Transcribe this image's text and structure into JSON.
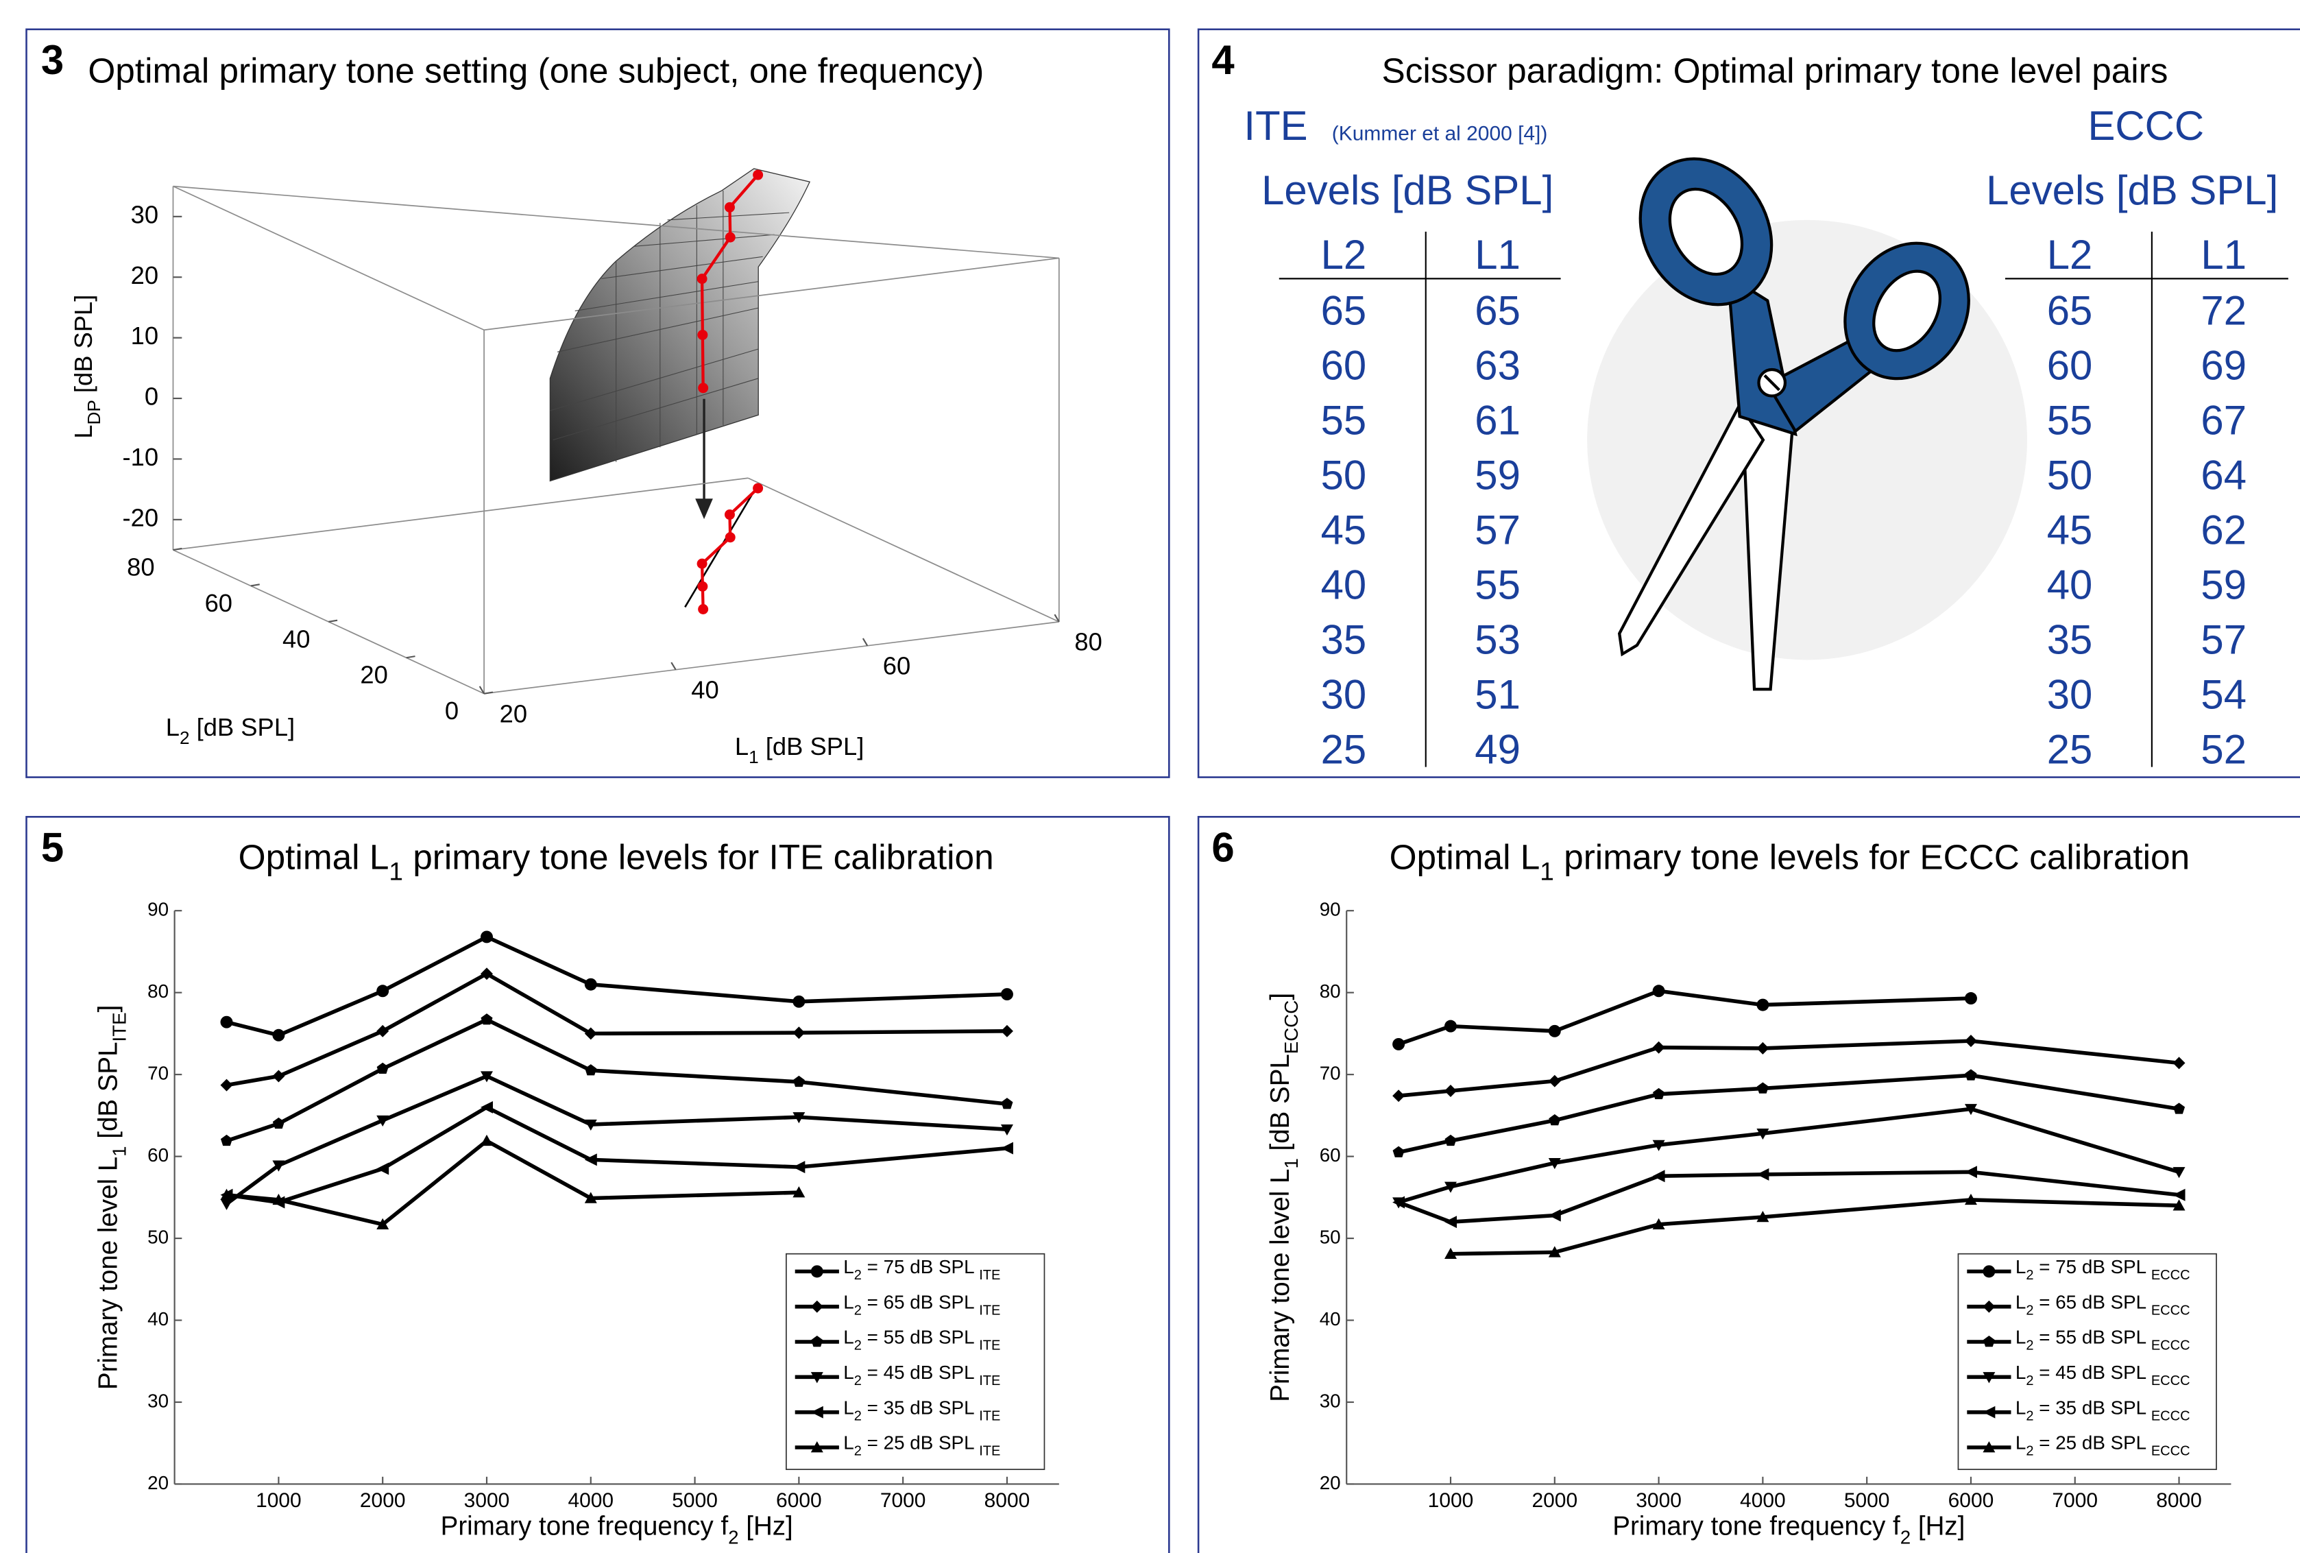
{
  "chart_data": [
    {
      "type": "surface",
      "panel": "3",
      "title": "Optimal primary tone setting (one subject, one frequency)",
      "xlabel": [
        "L",
        "1",
        " [dB SPL]"
      ],
      "ylabel": [
        "L",
        "2",
        " [dB SPL]"
      ],
      "zlabel": [
        "L",
        "DP",
        " [dB SPL]"
      ],
      "xlim": [
        20,
        80
      ],
      "ylim": [
        0,
        80
      ],
      "zlim": [
        -25,
        35
      ],
      "xticks": [
        20,
        40,
        60,
        80
      ],
      "yticks": [
        0,
        20,
        40,
        60,
        80
      ],
      "zticks": [
        -20,
        -10,
        0,
        10,
        20,
        30
      ],
      "path": {
        "color": "#e8000b",
        "x": [
          53,
          57,
          61,
          68,
          72,
          79
        ],
        "y": [
          25,
          35,
          45,
          55,
          65,
          75
        ],
        "z": [
          11.5,
          16.5,
          22,
          24.5,
          25.7,
          26.7
        ]
      }
    },
    {
      "type": "line",
      "panel": "5",
      "title": [
        "Optimal L",
        "1",
        " primary tone levels for ITE calibration"
      ],
      "xlabel": [
        "Primary tone frequency f",
        "2",
        " [Hz]"
      ],
      "ylabel": [
        "Primary tone level L",
        "1",
        " [dB SPL",
        "ITE",
        "]"
      ],
      "x": [
        500,
        1000,
        2000,
        3000,
        4000,
        6000,
        8000
      ],
      "xlim": [
        0,
        8500
      ],
      "ylim": [
        20,
        90
      ],
      "xticks": [
        1000,
        2000,
        3000,
        4000,
        5000,
        6000,
        7000,
        8000
      ],
      "yticks": [
        20,
        30,
        40,
        50,
        60,
        70,
        80,
        90
      ],
      "legend": "lower right",
      "series": [
        {
          "name": [
            "L",
            "2",
            " = 75 dB SPL ",
            "ITE"
          ],
          "color": "#000000",
          "marker": "o",
          "values": [
            76.4,
            74.8,
            80.2,
            86.8,
            81.0,
            78.9,
            79.8
          ]
        },
        {
          "name": [
            "L",
            "2",
            " = 65 dB SPL ",
            "ITE"
          ],
          "color": "#000000",
          "marker": "d",
          "values": [
            68.7,
            69.8,
            75.3,
            82.3,
            75.0,
            75.1,
            75.3
          ]
        },
        {
          "name": [
            "L",
            "2",
            " = 55 dB SPL ",
            "ITE"
          ],
          "color": "#000000",
          "marker": "p",
          "values": [
            61.9,
            64.0,
            70.7,
            76.7,
            70.5,
            69.1,
            66.4
          ]
        },
        {
          "name": [
            "L",
            "2",
            " = 45 dB SPL ",
            "ITE"
          ],
          "color": "#000000",
          "marker": "v",
          "values": [
            54.2,
            58.9,
            64.4,
            69.8,
            63.9,
            64.8,
            63.3
          ]
        },
        {
          "name": [
            "L",
            "2",
            " = 35 dB SPL ",
            "ITE"
          ],
          "color": "#000000",
          "marker": "<",
          "values": [
            55.3,
            54.4,
            58.5,
            66.0,
            59.6,
            58.7,
            61.0
          ]
        },
        {
          "name": [
            "L",
            "2",
            " = 25 dB SPL ",
            "ITE"
          ],
          "color": "#000000",
          "marker": "^",
          "values": [
            55.3,
            54.7,
            51.7,
            61.9,
            54.9,
            55.6,
            null
          ]
        }
      ]
    },
    {
      "type": "line",
      "panel": "6",
      "title": [
        "Optimal L",
        "1",
        " primary tone levels for ECCC calibration"
      ],
      "xlabel": [
        "Primary tone frequency f",
        "2",
        " [Hz]"
      ],
      "ylabel": [
        "Primary tone level L",
        "1",
        " [dB SPL",
        "ECCC",
        "]"
      ],
      "x": [
        500,
        1000,
        2000,
        3000,
        4000,
        6000,
        8000
      ],
      "xlim": [
        0,
        8500
      ],
      "ylim": [
        20,
        90
      ],
      "xticks": [
        1000,
        2000,
        3000,
        4000,
        5000,
        6000,
        7000,
        8000
      ],
      "yticks": [
        20,
        30,
        40,
        50,
        60,
        70,
        80,
        90
      ],
      "legend": "lower right",
      "series": [
        {
          "name": [
            "L",
            "2",
            " = 75 dB SPL ",
            "ECCC"
          ],
          "color": "#000000",
          "marker": "o",
          "values": [
            73.7,
            75.9,
            75.3,
            80.2,
            78.5,
            79.3,
            null
          ]
        },
        {
          "name": [
            "L",
            "2",
            " = 65 dB SPL ",
            "ECCC"
          ],
          "color": "#000000",
          "marker": "d",
          "values": [
            67.4,
            68.0,
            69.2,
            73.3,
            73.2,
            74.1,
            71.4
          ]
        },
        {
          "name": [
            "L",
            "2",
            " = 55 dB SPL ",
            "ECCC"
          ],
          "color": "#000000",
          "marker": "p",
          "values": [
            60.5,
            61.9,
            64.4,
            67.6,
            68.3,
            69.9,
            65.8
          ]
        },
        {
          "name": [
            "L",
            "2",
            " = 45 dB SPL ",
            "ECCC"
          ],
          "color": "#000000",
          "marker": "v",
          "values": [
            54.4,
            56.3,
            59.2,
            61.4,
            62.8,
            65.8,
            58.1
          ]
        },
        {
          "name": [
            "L",
            "2",
            " = 35 dB SPL ",
            "ECCC"
          ],
          "color": "#000000",
          "marker": "<",
          "values": [
            54.4,
            52.0,
            52.8,
            57.6,
            57.8,
            58.1,
            55.3
          ]
        },
        {
          "name": [
            "L",
            "2",
            " = 25 dB SPL ",
            "ECCC"
          ],
          "color": "#000000",
          "marker": "^",
          "values": [
            null,
            48.1,
            48.3,
            51.7,
            52.6,
            54.7,
            54.0
          ]
        }
      ]
    }
  ],
  "scissor_panel": {
    "panel": "4",
    "title": "Scissor paradigm: Optimal primary tone level pairs",
    "left": {
      "name": "ITE",
      "note": "(Kummer et al 2000 [4])",
      "heading": "Levels [dB SPL]",
      "columns": [
        "L2",
        "L1"
      ],
      "rows": [
        [
          65,
          65
        ],
        [
          60,
          63
        ],
        [
          55,
          61
        ],
        [
          50,
          59
        ],
        [
          45,
          57
        ],
        [
          40,
          55
        ],
        [
          35,
          53
        ],
        [
          30,
          51
        ],
        [
          25,
          49
        ]
      ]
    },
    "right": {
      "name": "ECCC",
      "heading": "Levels [dB SPL]",
      "columns": [
        "L2",
        "L1"
      ],
      "rows": [
        [
          65,
          72
        ],
        [
          60,
          69
        ],
        [
          55,
          67
        ],
        [
          50,
          64
        ],
        [
          45,
          62
        ],
        [
          40,
          59
        ],
        [
          35,
          57
        ],
        [
          30,
          54
        ],
        [
          25,
          52
        ]
      ]
    }
  }
}
